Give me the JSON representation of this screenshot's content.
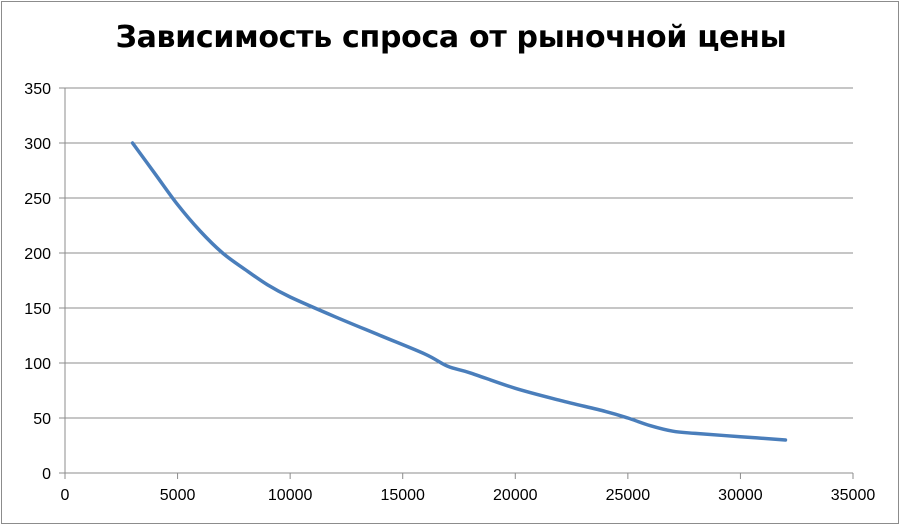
{
  "chart_data": {
    "type": "line",
    "title": "Зависимость спроса от рыночной цены",
    "xlabel": "",
    "ylabel": "",
    "xlim": [
      0,
      35000
    ],
    "ylim": [
      0,
      350
    ],
    "x_ticks": [
      0,
      5000,
      10000,
      15000,
      20000,
      25000,
      30000,
      35000
    ],
    "y_ticks": [
      0,
      50,
      100,
      150,
      200,
      250,
      300,
      350
    ],
    "grid": {
      "horizontal": true,
      "vertical": false
    },
    "legend": "none",
    "series_color": "#4a7ebb",
    "series": [
      {
        "x": [
          3000,
          4000,
          5000,
          6000,
          7000,
          8000,
          9000,
          10000,
          12000,
          14000,
          16000,
          17000,
          18000,
          20000,
          22000,
          24000,
          25000,
          26000,
          27000,
          28000,
          30000,
          32000
        ],
        "values": [
          300,
          272,
          244,
          220,
          200,
          185,
          171,
          160,
          142,
          125,
          108,
          97,
          91,
          77,
          66,
          56,
          50,
          43,
          38,
          36,
          33,
          30
        ]
      }
    ]
  }
}
